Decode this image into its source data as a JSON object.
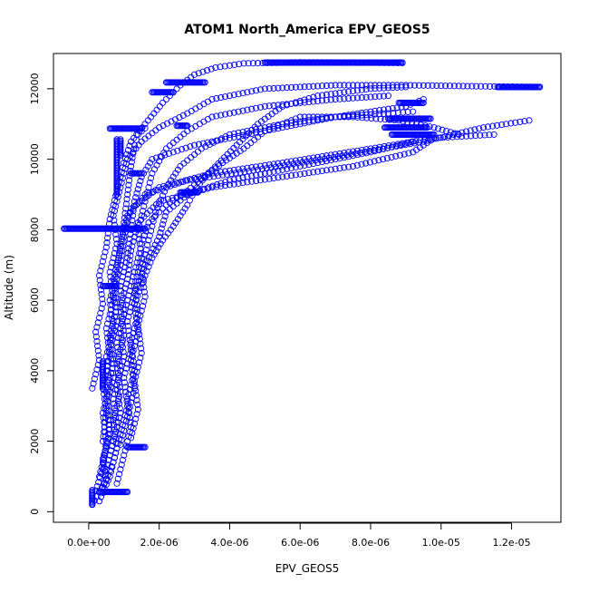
{
  "chart_data": {
    "type": "scatter",
    "title": "ATOM1 North_America EPV_GEOS5",
    "xlabel": "EPV_GEOS5",
    "ylabel": "Altitude (m)",
    "xlim": [
      -1e-06,
      1.34e-05
    ],
    "ylim": [
      -300,
      13000
    ],
    "x_ticks": [
      0,
      2e-06,
      4e-06,
      6e-06,
      8e-06,
      1e-05,
      1.2e-05
    ],
    "x_tick_labels": [
      "0.0e+00",
      "2.0e-06",
      "4.0e-06",
      "6.0e-06",
      "8.0e-06",
      "1.0e-05",
      "1.2e-05"
    ],
    "y_ticks": [
      0,
      2000,
      4000,
      6000,
      8000,
      10000,
      12000
    ],
    "y_tick_labels": [
      "0",
      "2000",
      "4000",
      "6000",
      "8000",
      "10000",
      "12000"
    ],
    "marker": "open-circle",
    "color": "#0000ff",
    "grid": false,
    "series": [
      {
        "points": [
          [
            1e-07,
            200
          ],
          [
            3e-07,
            550
          ],
          [
            5e-07,
            900
          ],
          [
            4e-07,
            1500
          ],
          [
            6e-07,
            2200
          ],
          [
            5e-07,
            3000
          ],
          [
            7e-07,
            3800
          ],
          [
            6e-07,
            4600
          ],
          [
            8e-07,
            5400
          ],
          [
            7e-07,
            6200
          ],
          [
            9e-07,
            7000
          ],
          [
            1e-06,
            7800
          ],
          [
            1.2e-06,
            8600
          ],
          [
            2e-06,
            9200
          ],
          [
            3.5e-06,
            9600
          ],
          [
            5.5e-06,
            9900
          ],
          [
            8e-06,
            10300
          ],
          [
            9.8e-06,
            10600
          ],
          [
            1.15e-05,
            10700
          ]
        ]
      },
      {
        "points": [
          [
            2e-07,
            600
          ],
          [
            4e-07,
            1200
          ],
          [
            5e-07,
            2000
          ],
          [
            4e-07,
            2800
          ],
          [
            6e-07,
            3600
          ],
          [
            5e-07,
            4400
          ],
          [
            7e-07,
            5200
          ],
          [
            6e-07,
            6000
          ],
          [
            8e-07,
            6800
          ],
          [
            9e-07,
            7600
          ],
          [
            1.1e-06,
            8400
          ],
          [
            1.6e-06,
            9000
          ],
          [
            2.8e-06,
            9400
          ],
          [
            4.8e-06,
            9700
          ],
          [
            7.2e-06,
            10100
          ],
          [
            9.5e-06,
            10500
          ],
          [
            1.12e-05,
            10900
          ],
          [
            1.25e-05,
            11100
          ]
        ]
      },
      {
        "points": [
          [
            3e-07,
            300
          ],
          [
            6e-07,
            1000
          ],
          [
            8e-07,
            1800
          ],
          [
            7e-07,
            2600
          ],
          [
            9e-07,
            3400
          ],
          [
            8e-07,
            4200
          ],
          [
            1e-06,
            5000
          ],
          [
            9e-07,
            5800
          ],
          [
            1.1e-06,
            6600
          ],
          [
            1.2e-06,
            7400
          ],
          [
            1.4e-06,
            8200
          ],
          [
            2e-06,
            8800
          ],
          [
            3.5e-06,
            9200
          ],
          [
            5.5e-06,
            9500
          ],
          [
            7.5e-06,
            9800
          ],
          [
            9.2e-06,
            10200
          ],
          [
            9.8e-06,
            10600
          ]
        ]
      },
      {
        "points": [
          [
            4e-07,
            700
          ],
          [
            7e-07,
            1400
          ],
          [
            9e-07,
            2200
          ],
          [
            1.1e-06,
            3000
          ],
          [
            1e-06,
            3800
          ],
          [
            1.2e-06,
            4600
          ],
          [
            1.1e-06,
            5400
          ],
          [
            1.3e-06,
            6200
          ],
          [
            1.6e-06,
            7000
          ],
          [
            2e-06,
            7800
          ],
          [
            2.2e-06,
            8500
          ],
          [
            2.8e-06,
            9000
          ],
          [
            4e-06,
            9400
          ],
          [
            6e-06,
            9800
          ],
          [
            8e-06,
            10200
          ],
          [
            9.2e-06,
            10500
          ]
        ]
      },
      {
        "points": [
          [
            6e-07,
            1600
          ],
          [
            8e-07,
            2400
          ],
          [
            7e-07,
            3200
          ],
          [
            9e-07,
            4000
          ],
          [
            8e-07,
            4800
          ],
          [
            1e-06,
            5600
          ],
          [
            9e-07,
            6400
          ],
          [
            1.1e-06,
            7200
          ],
          [
            1.2e-06,
            8000
          ],
          [
            1.3e-06,
            8800
          ],
          [
            1.5e-06,
            9500
          ],
          [
            1.8e-06,
            10000
          ],
          [
            3e-06,
            10400
          ],
          [
            5e-06,
            10800
          ],
          [
            7e-06,
            11200
          ],
          [
            9e-06,
            11500
          ],
          [
            9.5e-06,
            11700
          ]
        ]
      },
      {
        "points": [
          [
            8e-07,
            800
          ],
          [
            1e-06,
            1600
          ],
          [
            1.2e-06,
            2400
          ],
          [
            1.1e-06,
            3200
          ],
          [
            1.3e-06,
            4000
          ],
          [
            1.2e-06,
            4800
          ],
          [
            1.4e-06,
            5600
          ],
          [
            1.3e-06,
            6400
          ],
          [
            1.5e-06,
            7200
          ],
          [
            1.4e-06,
            8000
          ],
          [
            1.6e-06,
            8800
          ],
          [
            1.8e-06,
            9600
          ],
          [
            2.2e-06,
            10300
          ],
          [
            2.8e-06,
            10800
          ],
          [
            3.5e-06,
            11200
          ],
          [
            5e-06,
            11500
          ],
          [
            7e-06,
            11700
          ],
          [
            8.5e-06,
            11800
          ]
        ]
      },
      {
        "points": [
          [
            4e-07,
            2000
          ],
          [
            5e-07,
            2800
          ],
          [
            4e-07,
            3600
          ],
          [
            6e-07,
            4400
          ],
          [
            5e-07,
            5200
          ],
          [
            7e-07,
            6000
          ],
          [
            6e-07,
            6800
          ],
          [
            8e-07,
            7600
          ],
          [
            7e-07,
            8400
          ],
          [
            9e-07,
            9200
          ],
          [
            1.1e-06,
            10000
          ],
          [
            1.5e-06,
            10500
          ],
          [
            2e-06,
            10900
          ],
          [
            2.8e-06,
            11300
          ],
          [
            3.5e-06,
            11700
          ],
          [
            5e-06,
            12000
          ],
          [
            7e-06,
            12100
          ],
          [
            9e-06,
            12100
          ],
          [
            1.1e-05,
            12070
          ],
          [
            1.28e-05,
            12050
          ]
        ]
      },
      {
        "points": [
          [
            5e-07,
            1200
          ],
          [
            7e-07,
            2000
          ],
          [
            9e-07,
            2800
          ],
          [
            8e-07,
            3600
          ],
          [
            1e-06,
            4400
          ],
          [
            9e-07,
            5200
          ],
          [
            1.1e-06,
            6000
          ],
          [
            1.3e-06,
            6800
          ],
          [
            1.5e-06,
            7600
          ],
          [
            1.7e-06,
            8200
          ],
          [
            2.2e-06,
            8700
          ],
          [
            2.8e-06,
            9100
          ],
          [
            3.5e-06,
            9700
          ],
          [
            4.2e-06,
            10400
          ],
          [
            4.8e-06,
            11000
          ],
          [
            5.5e-06,
            11500
          ],
          [
            6.5e-06,
            11800
          ],
          [
            8e-06,
            12000
          ],
          [
            9e-06,
            12050
          ]
        ]
      },
      {
        "points": [
          [
            1e-07,
            3500
          ],
          [
            3e-07,
            4300
          ],
          [
            2e-07,
            5100
          ],
          [
            4e-07,
            5900
          ],
          [
            3e-07,
            6700
          ],
          [
            5e-07,
            7500
          ],
          [
            6e-07,
            8300
          ],
          [
            8e-07,
            9100
          ],
          [
            1e-06,
            9900
          ],
          [
            1.2e-06,
            10500
          ],
          [
            1.6e-06,
            11000
          ],
          [
            2.1e-06,
            11600
          ],
          [
            2.6e-06,
            12100
          ],
          [
            3e-06,
            12400
          ],
          [
            3.6e-06,
            12600
          ],
          [
            4.4e-06,
            12720
          ],
          [
            6e-06,
            12750
          ],
          [
            8e-06,
            12740
          ],
          [
            8.9e-06,
            12730
          ]
        ]
      },
      {
        "points": [
          [
            9e-07,
            1900
          ],
          [
            1.1e-06,
            2700
          ],
          [
            1.3e-06,
            3500
          ],
          [
            1.2e-06,
            4300
          ],
          [
            1.4e-06,
            5100
          ],
          [
            1.3e-06,
            5900
          ],
          [
            1.6e-06,
            6700
          ],
          [
            1.8e-06,
            7200
          ],
          [
            2.1e-06,
            7700
          ],
          [
            2.4e-06,
            8100
          ],
          [
            2.8e-06,
            8700
          ],
          [
            3e-06,
            9100
          ],
          [
            3.3e-06,
            9500
          ],
          [
            3.8e-06,
            9900
          ],
          [
            4.4e-06,
            10300
          ],
          [
            5e-06,
            10800
          ],
          [
            6e-06,
            11200
          ],
          [
            7.5e-06,
            11200
          ],
          [
            8.8e-06,
            11100
          ],
          [
            9.8e-06,
            10900
          ],
          [
            1.05e-05,
            10700
          ]
        ]
      },
      {
        "points": [
          [
            1.2e-06,
            2100
          ],
          [
            1.4e-06,
            2900
          ],
          [
            1.3e-06,
            3700
          ],
          [
            1.5e-06,
            4500
          ],
          [
            1.4e-06,
            5300
          ],
          [
            1.6e-06,
            6100
          ],
          [
            1.5e-06,
            6900
          ],
          [
            1.7e-06,
            7700
          ],
          [
            1.9e-06,
            8500
          ],
          [
            2.2e-06,
            9200
          ],
          [
            2.6e-06,
            9800
          ],
          [
            3.2e-06,
            10300
          ],
          [
            4e-06,
            10700
          ],
          [
            5.5e-06,
            11000
          ],
          [
            7e-06,
            11200
          ],
          [
            8.5e-06,
            11300
          ],
          [
            9.2e-06,
            11350
          ]
        ]
      },
      {
        "points": [
          [
            3e-07,
            1000
          ],
          [
            5e-07,
            1800
          ],
          [
            6e-07,
            2600
          ],
          [
            5e-07,
            3400
          ],
          [
            7e-07,
            4200
          ],
          [
            6e-07,
            5000
          ],
          [
            8e-07,
            5800
          ],
          [
            7e-07,
            6600
          ],
          [
            9e-07,
            7400
          ],
          [
            1e-06,
            8200
          ],
          [
            1.1e-06,
            9000
          ],
          [
            1.2e-06,
            9800
          ],
          [
            1.3e-06,
            10400
          ],
          [
            1.4e-06,
            10700
          ],
          [
            1.6e-06,
            10880
          ]
        ]
      }
    ],
    "horizontal_runs": [
      {
        "x_start": -7e-07,
        "x_end": 1.6e-06,
        "y": 8030
      },
      {
        "x_start": 6e-07,
        "x_end": 1.5e-06,
        "y": 10870
      },
      {
        "x_start": 2.2e-06,
        "x_end": 3.3e-06,
        "y": 12180
      },
      {
        "x_start": 5e-06,
        "x_end": 8.9e-06,
        "y": 12740
      },
      {
        "x_start": 1.16e-05,
        "x_end": 1.28e-05,
        "y": 12050
      },
      {
        "x_start": 8.6e-06,
        "x_end": 9.8e-06,
        "y": 10700
      },
      {
        "x_start": 8.4e-06,
        "x_end": 9.6e-06,
        "y": 10900
      },
      {
        "x_start": 8.5e-06,
        "x_end": 9.7e-06,
        "y": 11150
      },
      {
        "x_start": 8.8e-06,
        "x_end": 9.5e-06,
        "y": 11600
      },
      {
        "x_start": 2.6e-06,
        "x_end": 3.1e-06,
        "y": 9060
      },
      {
        "x_start": 1.2e-06,
        "x_end": 1.5e-06,
        "y": 9600
      },
      {
        "x_start": 3e-07,
        "x_end": 1.1e-06,
        "y": 560
      },
      {
        "x_start": 1.1e-06,
        "x_end": 1.6e-06,
        "y": 1830
      },
      {
        "x_start": 1.8e-06,
        "x_end": 2.4e-06,
        "y": 11900
      },
      {
        "x_start": 2.5e-06,
        "x_end": 2.8e-06,
        "y": 10950
      },
      {
        "x_start": 4e-07,
        "x_end": 8e-07,
        "y": 6400
      }
    ],
    "vertical_runs": [
      {
        "x": 1e-07,
        "y_start": 200,
        "y_end": 650
      },
      {
        "x": 4e-07,
        "y_start": 3500,
        "y_end": 4300
      },
      {
        "x": 8e-07,
        "y_start": 9000,
        "y_end": 10600
      },
      {
        "x": 9e-07,
        "y_start": 10100,
        "y_end": 10600
      }
    ]
  }
}
